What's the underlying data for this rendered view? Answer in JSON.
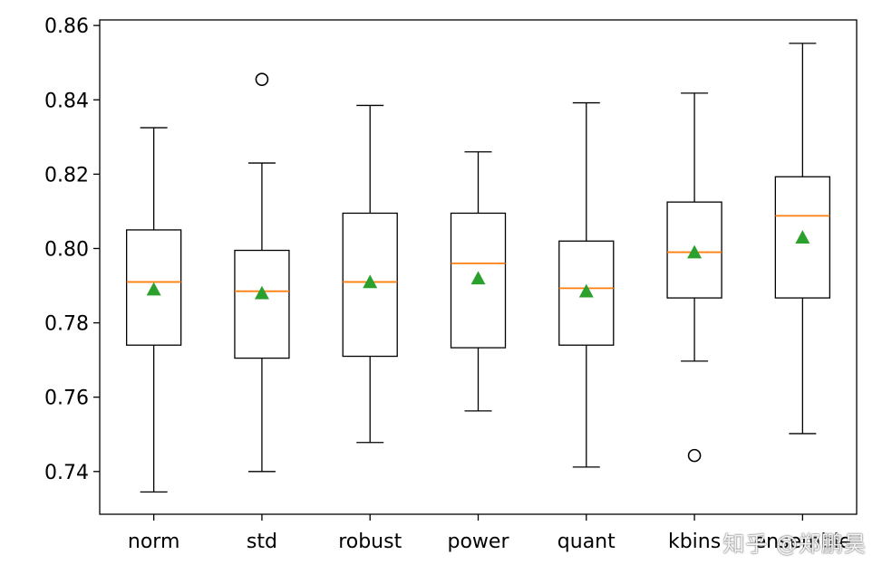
{
  "chart_data": {
    "type": "box",
    "categories": [
      "norm",
      "std",
      "robust",
      "power",
      "quant",
      "kbins",
      "ensemble"
    ],
    "boxes": [
      {
        "label": "norm",
        "whisker_low": 0.7345,
        "q1": 0.774,
        "median": 0.791,
        "q3": 0.805,
        "whisker_high": 0.8325,
        "mean": 0.789,
        "outliers": []
      },
      {
        "label": "std",
        "whisker_low": 0.74,
        "q1": 0.7705,
        "median": 0.7885,
        "q3": 0.7995,
        "whisker_high": 0.823,
        "mean": 0.788,
        "outliers": [
          0.8455
        ]
      },
      {
        "label": "robust",
        "whisker_low": 0.7478,
        "q1": 0.771,
        "median": 0.791,
        "q3": 0.8095,
        "whisker_high": 0.8385,
        "mean": 0.791,
        "outliers": []
      },
      {
        "label": "power",
        "whisker_low": 0.7563,
        "q1": 0.7733,
        "median": 0.796,
        "q3": 0.8095,
        "whisker_high": 0.826,
        "mean": 0.792,
        "outliers": []
      },
      {
        "label": "quant",
        "whisker_low": 0.7412,
        "q1": 0.774,
        "median": 0.7893,
        "q3": 0.802,
        "whisker_high": 0.8392,
        "mean": 0.7885,
        "outliers": []
      },
      {
        "label": "kbins",
        "whisker_low": 0.7697,
        "q1": 0.7867,
        "median": 0.799,
        "q3": 0.8125,
        "whisker_high": 0.8418,
        "mean": 0.799,
        "outliers": [
          0.7443
        ]
      },
      {
        "label": "ensemble",
        "whisker_low": 0.7502,
        "q1": 0.7867,
        "median": 0.8088,
        "q3": 0.8193,
        "whisker_high": 0.8552,
        "mean": 0.803,
        "outliers": []
      }
    ],
    "yticks": [
      "0.74",
      "0.76",
      "0.78",
      "0.80",
      "0.82",
      "0.84",
      "0.86"
    ],
    "ytick_values": [
      0.74,
      0.76,
      0.78,
      0.8,
      0.82,
      0.84,
      0.86
    ],
    "ylim": [
      0.7285,
      0.8615
    ],
    "grid": false,
    "colors": {
      "box": "#000000",
      "median": "#ff7f0e",
      "mean": "#2ca02c",
      "outlier": "#000000"
    }
  },
  "watermark": "知乎 @郑鹏昊"
}
